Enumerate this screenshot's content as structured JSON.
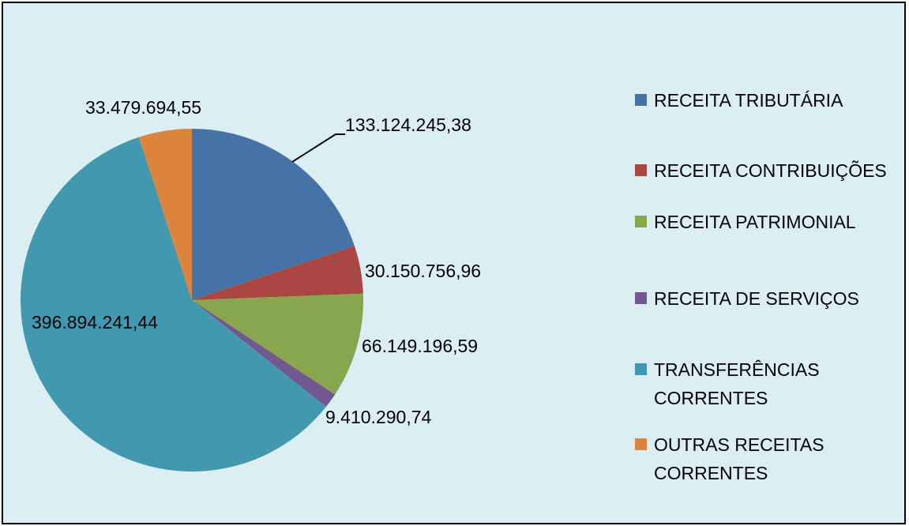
{
  "chart_data": {
    "type": "pie",
    "categories": [
      "RECEITA TRIBUTÁRIA",
      "RECEITA CONTRIBUIÇÕES",
      "RECEITA PATRIMONIAL",
      "RECEITA DE SERVIÇOS",
      "TRANSFERÊNCIAS CORRENTES",
      "OUTRAS RECEITAS CORRENTES"
    ],
    "values": [
      133124245.38,
      30150756.96,
      66149196.59,
      9410290.74,
      396894241.44,
      33479694.55
    ],
    "value_labels": [
      "133.124.245,38",
      "30.150.756,96",
      "66.149.196,59",
      "9.410.290,74",
      "396.894.241,44",
      "33.479.694,55"
    ],
    "colors": [
      "#4573a7",
      "#aa4643",
      "#89a54e",
      "#71588f",
      "#4198af",
      "#db843d"
    ],
    "legend": "right"
  }
}
